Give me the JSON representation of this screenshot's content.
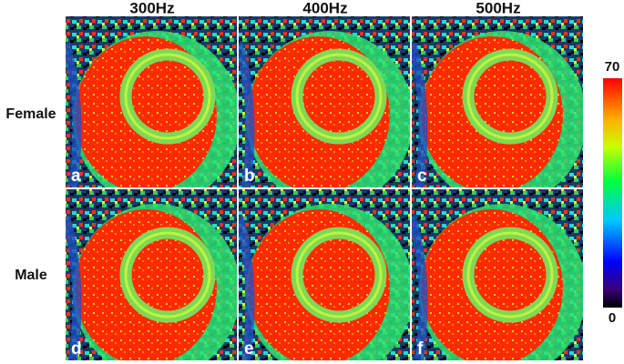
{
  "columns": [
    "300Hz",
    "400Hz",
    "500Hz"
  ],
  "rows": [
    "Female",
    "Male"
  ],
  "panels": [
    [
      "a",
      "b",
      "c"
    ],
    [
      "d",
      "e",
      "f"
    ]
  ],
  "colorbar": {
    "max": "70",
    "min": "0"
  }
}
